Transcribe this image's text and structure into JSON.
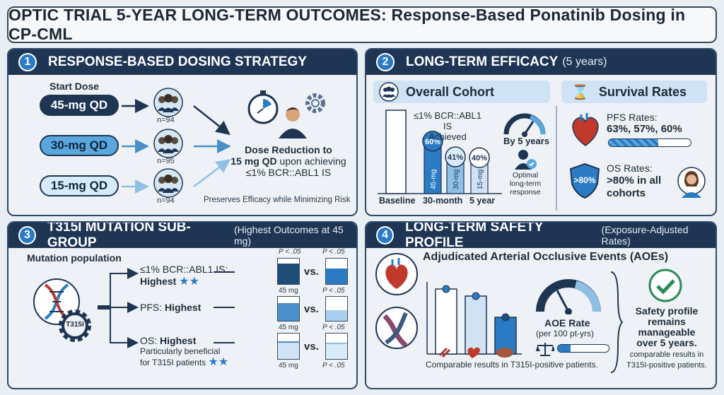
{
  "title": "OPTIC TRIAL 5-YEAR LONG-TERM OUTCOMES: Response-Based Ponatinib Dosing in CP-CML",
  "panel1": {
    "num": "1",
    "title": "RESPONSE-BASED DOSING STRATEGY",
    "start_dose_label": "Start Dose",
    "doses": [
      {
        "label": "45-mg QD",
        "n": "n=94"
      },
      {
        "label": "30-mg QD",
        "n": "n=95"
      },
      {
        "label": "15-mg QD",
        "n": "n=94"
      }
    ],
    "reduction_line1": "Dose Reduction to",
    "reduction_line2_bold": "15 mg QD",
    "reduction_line2_rest": " upon achieving",
    "reduction_line3": "≤1% BCR::ABL1 IS",
    "footer": "Preserves Efficacy while Minimizing Risk"
  },
  "panel2": {
    "num": "2",
    "title": "LONG-TERM EFFICACY",
    "subtitle": "(5 years)",
    "overall_label": "Overall Cohort",
    "survival_label": "Survival Rates",
    "achieved_line1": "≤1% BCR::ABL1 IS",
    "achieved_line2": "Achieved",
    "bars": [
      {
        "pct": "60%",
        "dose": "45-mg",
        "value": 60
      },
      {
        "pct": "41%",
        "dose": "30-mg",
        "value": 41
      },
      {
        "pct": "40%",
        "dose": "15-mg",
        "value": 40
      }
    ],
    "x_labels": [
      "Baseline",
      "30-month",
      "5 year"
    ],
    "by5": "By 5 years",
    "optimal": [
      "Optimal",
      "long-term",
      "response"
    ],
    "pfs_label": "PFS Rates:",
    "pfs_values": "63%, 57%, 60%",
    "os_label": "OS Rates:",
    "os_values_1": ">80% in all",
    "os_values_2": "cohorts",
    "shield_text": ">80%"
  },
  "panel3": {
    "num": "3",
    "title": "T315I MUTATION SUB-GROUP",
    "subtitle": "(Highest Outcomes at 45 mg)",
    "population": "Mutation population",
    "gene_label": "T315I",
    "rows": [
      {
        "label_pre": "≤1% BCR::ABL1 IS:",
        "label_bold": "Highest",
        "stars": "★★",
        "p_top_left": "P < .05",
        "p_top_right": "P < .05",
        "mg": "45 mg",
        "p_bottom": "P < .05"
      },
      {
        "label_pre": "PFS: ",
        "label_bold": "Highest",
        "mg": "45 mg",
        "p_bottom": "P < .05"
      },
      {
        "label_pre": "OS: ",
        "label_bold": "Highest",
        "note1": "Particularly beneficial",
        "note2": "for T315I patients",
        "stars": "★★",
        "mg": "45 mg",
        "p_bottom": "P < .05"
      }
    ],
    "vs": "vs."
  },
  "panel4": {
    "num": "4",
    "title": "LONG-TERM SAFETY PROFILE",
    "subtitle": "(Exposure-Adjusted Rates)",
    "aoe_title": "Adjudicated Arterial Occlusive Events (AOEs)",
    "aoe_rate": "AOE Rate",
    "aoe_unit": "(per 100 pt-yrs)",
    "comparable": "Comparable results in T315I-positive patients.",
    "safety1": "Safety profile",
    "safety2": "remains",
    "safety3": "manageable",
    "safety4": "over 5 years.",
    "safety5": "comparable results in",
    "safety6": "T315I-positive patients."
  }
}
